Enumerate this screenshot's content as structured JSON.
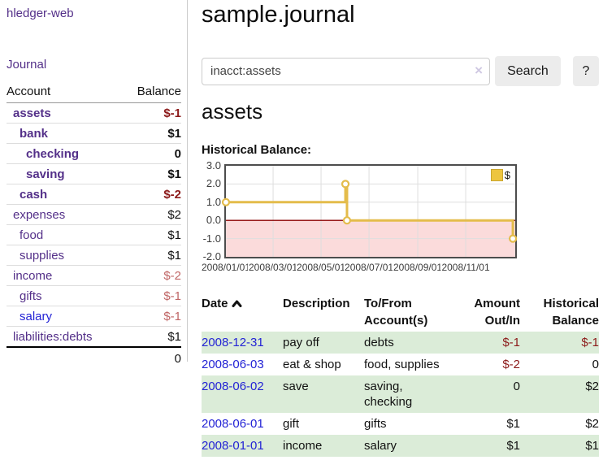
{
  "colors": {
    "purple": "#543089",
    "blue": "#2323d5",
    "neg": "#8c1a1a",
    "negsoft": "#c06666",
    "stripe": "#dbecd8",
    "btn": "#ececec",
    "gold": "#e4bc4b",
    "goldfill": "#edc53f",
    "goldborder": "#c9a52e",
    "pink": "#fbdbdb",
    "zero": "#8b0000",
    "grid": "#dedede"
  },
  "sidebar": {
    "brand": "hledger-web",
    "nav_journal": "Journal",
    "accounts_table": {
      "headers": {
        "account": "Account",
        "balance": "Balance"
      },
      "rows": [
        {
          "name": "assets",
          "indent": 1,
          "bold": true,
          "link": "purple",
          "balance": "$-1",
          "balance_style": "neg-strong"
        },
        {
          "name": "bank",
          "indent": 2,
          "bold": true,
          "link": "purple",
          "balance": "$1",
          "balance_style": "pos"
        },
        {
          "name": "checking",
          "indent": 3,
          "bold": true,
          "link": "purple",
          "balance": "0",
          "balance_style": "pos"
        },
        {
          "name": "saving",
          "indent": 3,
          "bold": true,
          "link": "purple",
          "balance": "$1",
          "balance_style": "pos"
        },
        {
          "name": "cash",
          "indent": 2,
          "bold": true,
          "link": "purple",
          "balance": "$-2",
          "balance_style": "neg-strong"
        },
        {
          "name": "expenses",
          "indent": 1,
          "bold": false,
          "link": "purple",
          "balance": "$2",
          "balance_style": "pos"
        },
        {
          "name": "food",
          "indent": 2,
          "bold": false,
          "link": "purple",
          "balance": "$1",
          "balance_style": "pos"
        },
        {
          "name": "supplies",
          "indent": 2,
          "bold": false,
          "link": "purple",
          "balance": "$1",
          "balance_style": "pos"
        },
        {
          "name": "income",
          "indent": 1,
          "bold": false,
          "link": "purple",
          "balance": "$-2",
          "balance_style": "neg"
        },
        {
          "name": "gifts",
          "indent": 2,
          "bold": false,
          "link": "purple",
          "balance": "$-1",
          "balance_style": "neg"
        },
        {
          "name": "salary",
          "indent": 2,
          "bold": false,
          "link": "blue",
          "balance": "$-1",
          "balance_style": "neg"
        },
        {
          "name": "liabilities:debts",
          "indent": 1,
          "bold": false,
          "link": "purple",
          "balance": "$1",
          "balance_style": "pos"
        }
      ],
      "total": "0"
    }
  },
  "header": {
    "title": "sample.journal"
  },
  "search": {
    "value": "inacct:assets",
    "clear_icon": "×",
    "button": "Search",
    "help_button": "?"
  },
  "main": {
    "account_heading": "assets",
    "chart_label": "Historical Balance:"
  },
  "chart_data": {
    "type": "line",
    "step": true,
    "title": "Historical Balance:",
    "series": [
      {
        "name": "$",
        "points": [
          [
            "2008-01-01",
            1
          ],
          [
            "2008-06-01",
            2
          ],
          [
            "2008-06-03",
            0
          ],
          [
            "2008-12-31",
            -1
          ]
        ]
      }
    ],
    "xlim": [
      "2008-01-01",
      "2009-01-03"
    ],
    "ylim": [
      -2,
      3
    ],
    "y_ticks": [
      "3.0",
      "2.0",
      "1.0",
      "0.0",
      "-1.0",
      "-2.0"
    ],
    "x_ticks": [
      {
        "date": "2008-01-01",
        "label": "2008/01/01"
      },
      {
        "date": "2008-03-01",
        "label": "2008/03/01"
      },
      {
        "date": "2008-05-01",
        "label": "2008/05/01"
      },
      {
        "date": "2008-07-01",
        "label": "2008/07/01"
      },
      {
        "date": "2008-09-01",
        "label": "2008/09/01"
      },
      {
        "date": "2008-11-01",
        "label": "2008/11/01"
      }
    ],
    "grid": true,
    "legend_position": "top-right",
    "negative_region_shaded": true
  },
  "register_table": {
    "headers": [
      "Date",
      "Description",
      "To/From\nAccount(s)",
      "Amount\nOut/In",
      "Historical\nBalance"
    ],
    "rows": [
      {
        "date": "2008-12-31",
        "description": "pay off",
        "accounts": "debts",
        "amount": "$-1",
        "balance": "$-1"
      },
      {
        "date": "2008-06-03",
        "description": "eat & shop",
        "accounts": "food, supplies",
        "amount": "$-2",
        "balance": "0"
      },
      {
        "date": "2008-06-02",
        "description": "save",
        "accounts": "saving,\nchecking",
        "amount": "0",
        "balance": "$2"
      },
      {
        "date": "2008-06-01",
        "description": "gift",
        "accounts": "gifts",
        "amount": "$1",
        "balance": "$2"
      },
      {
        "date": "2008-01-01",
        "description": "income",
        "accounts": "salary",
        "amount": "$1",
        "balance": "$1"
      }
    ]
  }
}
